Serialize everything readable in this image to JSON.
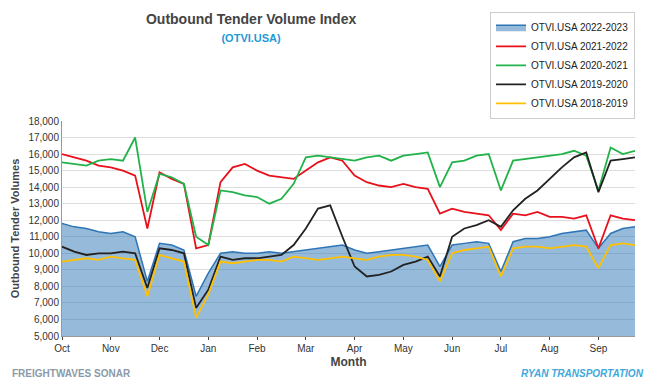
{
  "chart_data": {
    "type": "line",
    "title": "Outbound Tender Volume Index",
    "subtitle": "(OTVI.USA)",
    "x_label": "Month",
    "y_label": "Outbound Tender Volumes",
    "annotations": [
      "FREIGHTWAVES SONAR",
      "RYAN TRANSPORTATION"
    ],
    "categories": [
      "Oct",
      null,
      null,
      null,
      "Nov",
      null,
      null,
      null,
      "Dec",
      null,
      null,
      null,
      "Jan",
      null,
      null,
      null,
      "Feb",
      null,
      null,
      null,
      "Mar",
      null,
      null,
      null,
      "Apr",
      null,
      null,
      null,
      "May",
      null,
      null,
      null,
      "Jun",
      null,
      null,
      null,
      "Jul",
      null,
      null,
      null,
      "Aug",
      null,
      null,
      null,
      "Sep",
      null,
      null,
      null
    ],
    "ylim": [
      5000,
      18000
    ],
    "yticks": [
      {
        "value": 5000,
        "label": "5,000"
      },
      {
        "value": 6000,
        "label": "6,000"
      },
      {
        "value": 7000,
        "label": "7,000"
      },
      {
        "value": 8000,
        "label": "8,000"
      },
      {
        "value": 9000,
        "label": "9,000"
      },
      {
        "value": 10000,
        "label": "10,000"
      },
      {
        "value": 11000,
        "label": "11,000"
      },
      {
        "value": 12000,
        "label": "12,000"
      },
      {
        "value": 13000,
        "label": "13,000"
      },
      {
        "value": 14000,
        "label": "14,000"
      },
      {
        "value": 15000,
        "label": "15,000"
      },
      {
        "value": 16000,
        "label": "16,000"
      },
      {
        "value": 17000,
        "label": "17,000"
      },
      {
        "value": 18000,
        "label": "18,000"
      }
    ],
    "grid": true,
    "legend": "top right",
    "series": [
      {
        "name": "OTVI.USA 2022-2023",
        "type": "area",
        "color": "#2e75b6",
        "values": [
          11800,
          11600,
          11500,
          11300,
          11200,
          11300,
          11000,
          8300,
          10600,
          10500,
          10200,
          7400,
          8800,
          10000,
          10100,
          10000,
          10000,
          10100,
          10000,
          10100,
          10200,
          10300,
          10400,
          10500,
          10200,
          10000,
          10100,
          10200,
          10300,
          10400,
          10500,
          9200,
          10500,
          10600,
          10700,
          10600,
          8900,
          10700,
          10900,
          10900,
          11000,
          11200,
          11300,
          11400,
          10300,
          11200,
          11500,
          11600
        ]
      },
      {
        "name": "OTVI.USA 2021-2022",
        "type": "line",
        "color": "#e8101a",
        "values": [
          16000,
          15800,
          15600,
          15300,
          15200,
          15000,
          14700,
          11500,
          14900,
          14500,
          14200,
          10300,
          10500,
          14300,
          15200,
          15400,
          15000,
          14700,
          14600,
          14500,
          15000,
          15500,
          15800,
          15600,
          14700,
          14300,
          14100,
          14000,
          14200,
          14000,
          13900,
          12400,
          12700,
          12500,
          12400,
          12300,
          11400,
          12400,
          12300,
          12500,
          12200,
          12200,
          12100,
          12300,
          10300,
          12300,
          12100,
          12000
        ]
      },
      {
        "name": "OTVI.USA 2020-2021",
        "type": "line",
        "color": "#21b34a",
        "values": [
          15500,
          15400,
          15300,
          15600,
          15700,
          15600,
          17000,
          12500,
          14800,
          14600,
          14200,
          11000,
          10500,
          13800,
          13700,
          13500,
          13400,
          13000,
          13300,
          14200,
          15800,
          15900,
          15800,
          15700,
          15600,
          15800,
          15900,
          15600,
          15900,
          16000,
          16100,
          14000,
          15500,
          15600,
          15900,
          16000,
          13800,
          15600,
          15700,
          15800,
          15900,
          16000,
          16200,
          15900,
          13800,
          16400,
          16000,
          16200
        ]
      },
      {
        "name": "OTVI.USA 2019-2020",
        "type": "line",
        "color": "#222222",
        "values": [
          10400,
          10100,
          9900,
          10000,
          10000,
          10100,
          10000,
          7900,
          10300,
          10200,
          10000,
          6700,
          7800,
          9800,
          9600,
          9700,
          9700,
          9800,
          9900,
          10500,
          11500,
          12700,
          12900,
          11000,
          9200,
          8600,
          8700,
          8900,
          9300,
          9500,
          9800,
          8600,
          11000,
          11500,
          11700,
          12000,
          11600,
          12600,
          13300,
          13800,
          14500,
          15200,
          15800,
          16100,
          13700,
          15600,
          15700,
          15800
        ]
      },
      {
        "name": "OTVI.USA 2018-2019",
        "type": "line",
        "color": "#ffc000",
        "values": [
          9500,
          9600,
          9700,
          9600,
          9800,
          9700,
          9600,
          7400,
          9900,
          9700,
          9500,
          6100,
          7500,
          9500,
          9400,
          9500,
          9600,
          9600,
          9500,
          9800,
          9700,
          9600,
          9700,
          9800,
          9700,
          9600,
          9800,
          9900,
          9900,
          9800,
          9600,
          8300,
          10000,
          10200,
          10300,
          10400,
          8600,
          10300,
          10400,
          10400,
          10300,
          10400,
          10500,
          10400,
          9100,
          10500,
          10600,
          10500
        ]
      }
    ]
  }
}
